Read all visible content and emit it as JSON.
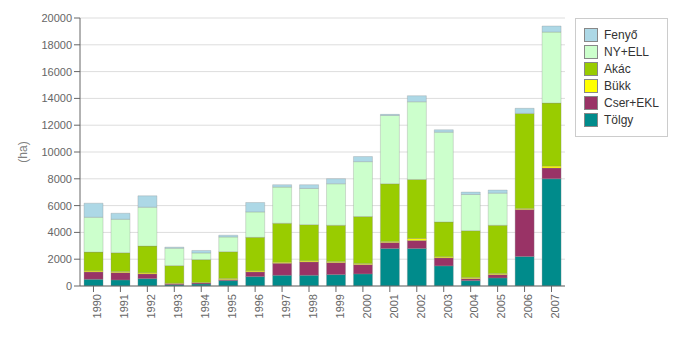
{
  "chart_data": {
    "type": "bar",
    "stacked": true,
    "ylabel": "(ha)",
    "categories": [
      "1990",
      "1991",
      "1992",
      "1993",
      "1994",
      "1995",
      "1996",
      "1997",
      "1998",
      "1999",
      "2000",
      "2001",
      "2002",
      "2003",
      "2004",
      "2005",
      "2006",
      "2007"
    ],
    "series": [
      {
        "name": "Tölgy",
        "color": "#008B8B",
        "values": [
          500,
          450,
          550,
          100,
          150,
          400,
          700,
          800,
          800,
          850,
          900,
          2800,
          2800,
          1500,
          400,
          600,
          2200,
          8000
        ]
      },
      {
        "name": "Cser+EKL",
        "color": "#993366",
        "values": [
          550,
          550,
          350,
          80,
          80,
          80,
          350,
          900,
          1000,
          900,
          700,
          450,
          600,
          600,
          150,
          250,
          3500,
          800
        ]
      },
      {
        "name": "Bükk",
        "color": "#FFFF00",
        "values": [
          80,
          80,
          80,
          40,
          40,
          80,
          80,
          80,
          80,
          80,
          80,
          80,
          150,
          80,
          80,
          80,
          80,
          150
        ]
      },
      {
        "name": "Akác",
        "color": "#99CC00",
        "values": [
          1400,
          1400,
          2000,
          1300,
          1700,
          2000,
          2500,
          2900,
          2700,
          2700,
          3500,
          4300,
          4400,
          2600,
          3500,
          3600,
          7100,
          4700
        ]
      },
      {
        "name": "NY+ELL",
        "color": "#CCFFCC",
        "values": [
          2600,
          2500,
          2900,
          1300,
          500,
          1100,
          1900,
          2700,
          2700,
          3100,
          4100,
          5100,
          5800,
          6700,
          2700,
          2400,
          0,
          5300
        ]
      },
      {
        "name": "Fenyő",
        "color": "#ADD8E6",
        "values": [
          1050,
          450,
          850,
          80,
          180,
          130,
          700,
          180,
          280,
          380,
          380,
          80,
          450,
          180,
          180,
          230,
          380,
          450
        ]
      }
    ],
    "ylim": [
      0,
      20000
    ],
    "yticks": [
      0,
      2000,
      4000,
      6000,
      8000,
      10000,
      12000,
      14000,
      16000,
      18000,
      20000
    ],
    "grid": true,
    "legend": "right"
  }
}
